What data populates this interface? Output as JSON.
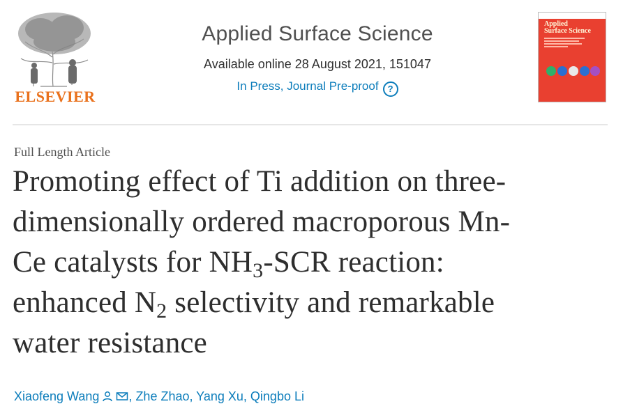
{
  "header": {
    "publisher": "ELSEVIER",
    "journal_title": "Applied Surface Science",
    "available_online": "Available online 28 August 2021, 151047",
    "status_text": "In Press, Journal Pre-proof",
    "help_symbol": "?",
    "cover": {
      "title_line1": "Applied",
      "title_line2": "Surface Science"
    }
  },
  "article": {
    "type": "Full Length Article",
    "title_parts": {
      "p1": "Promoting effect of Ti addition on three-",
      "p2": "dimensionally ordered macroporous Mn-",
      "p3": "Ce catalysts for NH",
      "sub1": "3",
      "p4": "-SCR reaction:",
      "p5": "enhanced N",
      "sub2": "2",
      "p6": " selectivity and remarkable",
      "p7": "water resistance"
    }
  },
  "authors": [
    {
      "name": "Xiaofeng Wang"
    },
    {
      "name": "Zhe Zhao"
    },
    {
      "name": "Yang Xu"
    },
    {
      "name": "Qingbo Li"
    }
  ],
  "colors": {
    "link": "#0c7dbb",
    "elsevier_orange": "#e9711c",
    "cover_red": "#e94030"
  },
  "icons": {
    "help": "question-circle-icon",
    "person": "person-icon",
    "email": "envelope-icon"
  }
}
